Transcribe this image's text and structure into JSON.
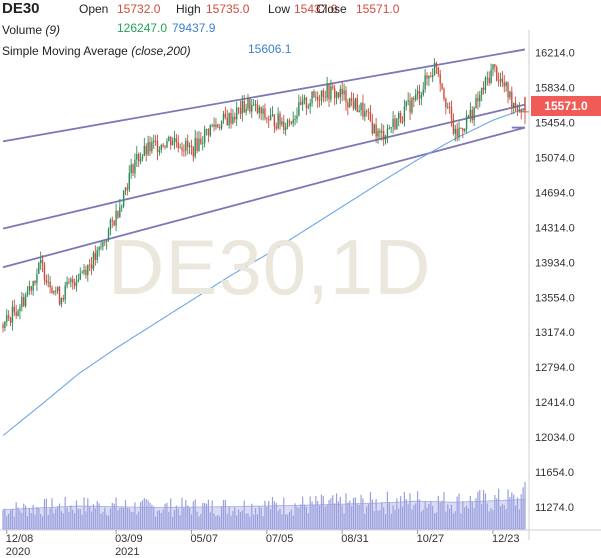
{
  "header": {
    "symbol": "DE30",
    "open_label": "Open",
    "open_value": "15732.0",
    "high_label": "High",
    "high_value": "15735.0",
    "low_label": "Low",
    "low_value": "15437.0",
    "close_label": "Close",
    "close_value": "15571.0",
    "volume_label": "Volume",
    "volume_period": "(9)",
    "volume_value": "126247.0",
    "volume_ma_value": "79437.9",
    "sma_label": "Simple Moving Average",
    "sma_params": "(close,200)",
    "sma_value": "15606.1",
    "watermark": "DE30,1D",
    "last_price": "15571.0"
  },
  "colors": {
    "up": "#2e8b57",
    "down": "#d14b3d",
    "sma": "#6aa8e8",
    "channel": "#7b78b8",
    "volume_fill": "#d6d9f5",
    "volume_bar": "#9aa0dd"
  },
  "chart_data": {
    "type": "candlestick",
    "y_ticks": [
      "16214.0",
      "15834.0",
      "15454.0",
      "15074.0",
      "14694.0",
      "14314.0",
      "13934.0",
      "13554.0",
      "13174.0",
      "12794.0",
      "12414.0",
      "12034.0",
      "11654.0",
      "11274.0"
    ],
    "ylim": [
      11120,
      16320
    ],
    "x_ticks": [
      {
        "label": "12/08",
        "sub": "2020",
        "idx": 2
      },
      {
        "label": "03/09",
        "sub": "2021",
        "idx": 60
      },
      {
        "label": "05/07",
        "sub": "",
        "idx": 100
      },
      {
        "label": "07/05",
        "sub": "",
        "idx": 140
      },
      {
        "label": "08/31",
        "sub": "",
        "idx": 180
      },
      {
        "label": "10/27",
        "sub": "",
        "idx": 220
      },
      {
        "label": "12/23",
        "sub": "",
        "idx": 260
      }
    ],
    "ohlc_anchor_closes": [
      [
        0,
        13250
      ],
      [
        10,
        13500
      ],
      [
        20,
        13900
      ],
      [
        30,
        13550
      ],
      [
        40,
        13800
      ],
      [
        50,
        14000
      ],
      [
        60,
        14450
      ],
      [
        70,
        15050
      ],
      [
        80,
        15200
      ],
      [
        90,
        15280
      ],
      [
        100,
        15150
      ],
      [
        110,
        15400
      ],
      [
        120,
        15500
      ],
      [
        130,
        15650
      ],
      [
        140,
        15500
      ],
      [
        150,
        15450
      ],
      [
        160,
        15650
      ],
      [
        170,
        15800
      ],
      [
        180,
        15750
      ],
      [
        190,
        15600
      ],
      [
        200,
        15300
      ],
      [
        210,
        15500
      ],
      [
        220,
        15750
      ],
      [
        230,
        16100
      ],
      [
        240,
        15300
      ],
      [
        250,
        15600
      ],
      [
        260,
        16050
      ],
      [
        270,
        15700
      ],
      [
        277,
        15571
      ]
    ],
    "last_bar": {
      "open": 15732.0,
      "high": 15735.0,
      "low": 15437.0,
      "close": 15571.0
    },
    "sma_anchor_values": [
      [
        0,
        12050
      ],
      [
        20,
        12380
      ],
      [
        40,
        12720
      ],
      [
        60,
        13000
      ],
      [
        80,
        13260
      ],
      [
        100,
        13520
      ],
      [
        120,
        13780
      ],
      [
        140,
        14020
      ],
      [
        160,
        14280
      ],
      [
        180,
        14540
      ],
      [
        200,
        14800
      ],
      [
        220,
        15050
      ],
      [
        240,
        15280
      ],
      [
        260,
        15480
      ],
      [
        277,
        15606.1
      ]
    ],
    "channels": [
      {
        "start": [
          0,
          15250
        ],
        "end": [
          277,
          16250
        ]
      },
      {
        "start": [
          0,
          14300
        ],
        "end": [
          277,
          15650
        ]
      },
      {
        "start": [
          0,
          13880
        ],
        "end": [
          277,
          15400
        ]
      }
    ],
    "volume_range": [
      0,
      140000
    ],
    "volume_ma_anchor": [
      [
        0,
        52000
      ],
      [
        40,
        62000
      ],
      [
        80,
        58000
      ],
      [
        120,
        60000
      ],
      [
        160,
        64000
      ],
      [
        200,
        70000
      ],
      [
        220,
        75000
      ],
      [
        240,
        72000
      ],
      [
        260,
        76000
      ],
      [
        277,
        79437.9
      ]
    ],
    "volume_last": 126247.0
  }
}
